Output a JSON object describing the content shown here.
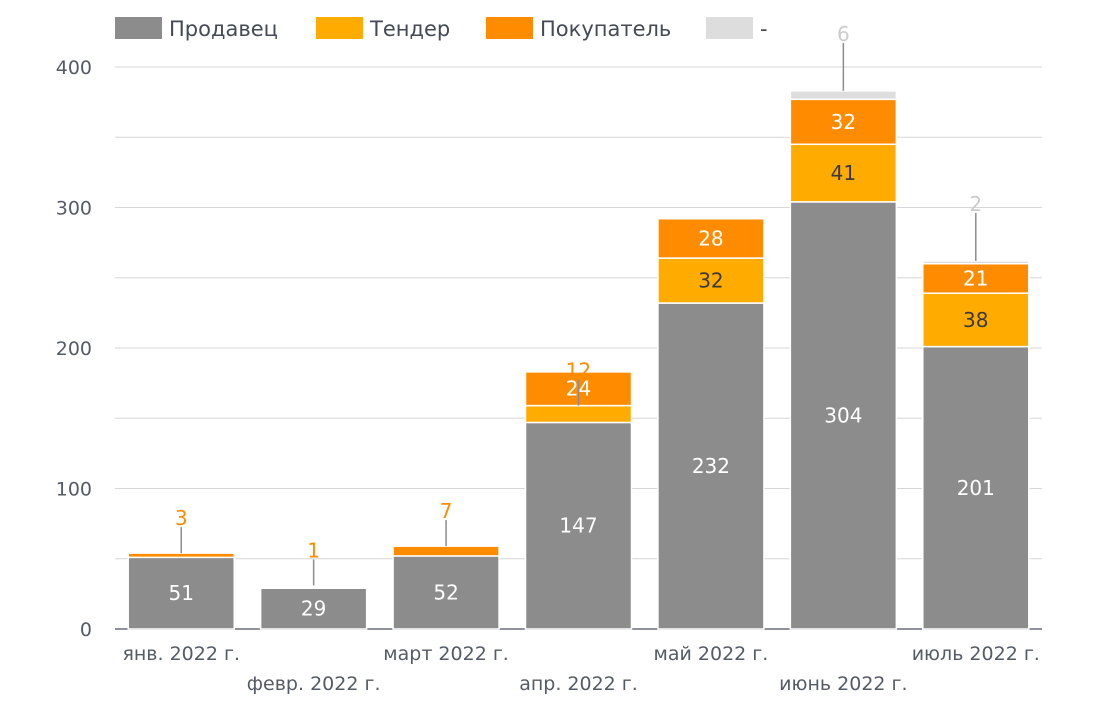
{
  "chart_data": {
    "type": "bar",
    "stacked": true,
    "categories": [
      "янв. 2022 г.",
      "февр. 2022 г.",
      "март 2022 г.",
      "апр. 2022 г.",
      "май 2022 г.",
      "июнь 2022 г.",
      "июль 2022 г."
    ],
    "series": [
      {
        "name": "Продавец",
        "color": "#8c8c8c",
        "values": [
          51,
          29,
          52,
          147,
          232,
          304,
          201
        ]
      },
      {
        "name": "Тендер",
        "color": "#ffab00",
        "values": [
          0,
          1,
          0,
          12,
          32,
          41,
          38
        ]
      },
      {
        "name": "Покупатель",
        "color": "#ff8c00",
        "values": [
          3,
          1,
          7,
          24,
          28,
          32,
          21
        ]
      },
      {
        "name": "-",
        "color": "#dddddd",
        "values": [
          0,
          0,
          1,
          0,
          0,
          6,
          2
        ]
      }
    ],
    "data_labels": [
      [
        {
          "text": "51"
        },
        {
          "text": ""
        },
        {
          "text": "3"
        },
        {
          "text": ""
        }
      ],
      [
        {
          "text": "29"
        },
        {
          "text": ""
        },
        {
          "text": "1"
        },
        {
          "text": ""
        }
      ],
      [
        {
          "text": "52"
        },
        {
          "text": ""
        },
        {
          "text": "7"
        },
        {
          "text": ""
        }
      ],
      [
        {
          "text": "147"
        },
        {
          "text": "12"
        },
        {
          "text": "24"
        },
        {
          "text": ""
        }
      ],
      [
        {
          "text": "232"
        },
        {
          "text": "32"
        },
        {
          "text": "28"
        },
        {
          "text": ""
        }
      ],
      [
        {
          "text": "304"
        },
        {
          "text": "41"
        },
        {
          "text": "32"
        },
        {
          "text": "6"
        }
      ],
      [
        {
          "text": "201"
        },
        {
          "text": "38"
        },
        {
          "text": "21"
        },
        {
          "text": "2"
        }
      ]
    ],
    "yticks": [
      "0",
      "100",
      "200",
      "300",
      "400"
    ],
    "ylim": [
      0,
      400
    ],
    "grid": true,
    "legend_position": "top-left",
    "title": "",
    "xlabel": "",
    "ylabel": ""
  }
}
